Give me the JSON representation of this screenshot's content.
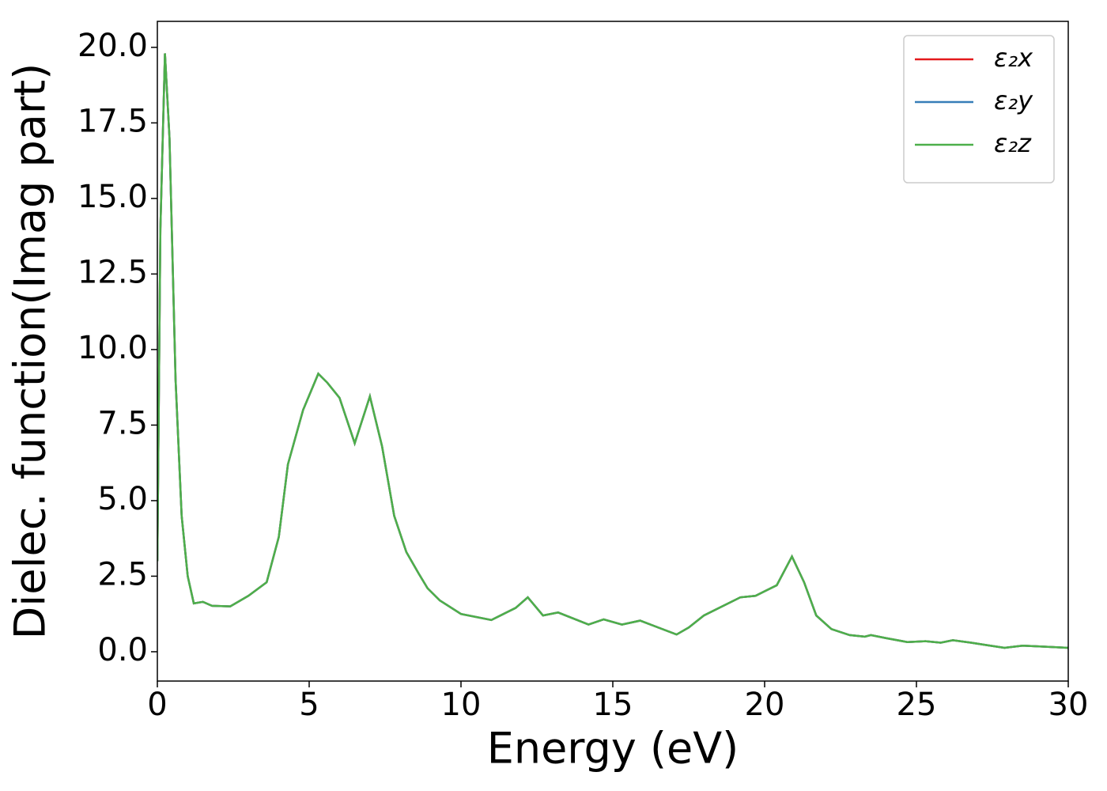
{
  "chart_data": {
    "type": "line",
    "xlabel": "Energy (eV)",
    "ylabel": "Dielec. function(Imag part)",
    "x": [
      0,
      0.1,
      0.25,
      0.4,
      0.6,
      0.8,
      1.0,
      1.2,
      1.5,
      1.8,
      2.4,
      3.0,
      3.6,
      4.0,
      4.3,
      4.8,
      5.3,
      5.6,
      6.0,
      6.5,
      7.0,
      7.4,
      7.8,
      8.2,
      8.6,
      8.9,
      9.3,
      10.0,
      11.0,
      11.5,
      11.8,
      12.2,
      12.7,
      13.2,
      13.7,
      14.2,
      14.7,
      15.3,
      15.9,
      16.5,
      17.1,
      17.5,
      18.0,
      18.6,
      19.2,
      19.7,
      20.0,
      20.4,
      20.9,
      21.3,
      21.7,
      22.2,
      22.8,
      23.3,
      23.5,
      24.0,
      24.7,
      25.3,
      25.8,
      26.2,
      26.8,
      27.3,
      27.9,
      28.5,
      29.2,
      30.0
    ],
    "series": [
      {
        "name": "ε₂x",
        "color": "#e41a1c",
        "values": [
          3.0,
          14,
          19.8,
          17,
          9,
          4.5,
          2.5,
          1.6,
          1.65,
          1.52,
          1.5,
          1.85,
          2.3,
          3.8,
          6.2,
          8.0,
          9.2,
          8.9,
          8.4,
          6.9,
          8.45,
          6.8,
          4.5,
          3.3,
          2.6,
          2.1,
          1.7,
          1.25,
          1.05,
          1.3,
          1.45,
          1.8,
          1.2,
          1.3,
          1.1,
          0.9,
          1.07,
          0.9,
          1.03,
          0.8,
          0.57,
          0.8,
          1.2,
          1.5,
          1.8,
          1.85,
          2.0,
          2.2,
          3.15,
          2.3,
          1.2,
          0.75,
          0.55,
          0.5,
          0.55,
          0.45,
          0.32,
          0.35,
          0.3,
          0.38,
          0.3,
          0.22,
          0.13,
          0.2,
          0.17,
          0.13
        ]
      },
      {
        "name": "ε₂y",
        "color": "#377eb8",
        "values": [
          3.0,
          14,
          19.8,
          17,
          9,
          4.5,
          2.5,
          1.6,
          1.65,
          1.52,
          1.5,
          1.85,
          2.3,
          3.8,
          6.2,
          8.0,
          9.2,
          8.9,
          8.4,
          6.9,
          8.45,
          6.8,
          4.5,
          3.3,
          2.6,
          2.1,
          1.7,
          1.25,
          1.05,
          1.3,
          1.45,
          1.8,
          1.2,
          1.3,
          1.1,
          0.9,
          1.07,
          0.9,
          1.03,
          0.8,
          0.57,
          0.8,
          1.2,
          1.5,
          1.8,
          1.85,
          2.0,
          2.2,
          3.15,
          2.3,
          1.2,
          0.75,
          0.55,
          0.5,
          0.55,
          0.45,
          0.32,
          0.35,
          0.3,
          0.38,
          0.3,
          0.22,
          0.13,
          0.2,
          0.17,
          0.13
        ]
      },
      {
        "name": "ε₂z",
        "color": "#4daf4a",
        "values": [
          3.0,
          14,
          19.8,
          17,
          9,
          4.5,
          2.5,
          1.6,
          1.65,
          1.52,
          1.5,
          1.85,
          2.3,
          3.8,
          6.2,
          8.0,
          9.2,
          8.9,
          8.4,
          6.9,
          8.45,
          6.8,
          4.5,
          3.3,
          2.6,
          2.1,
          1.7,
          1.25,
          1.05,
          1.3,
          1.45,
          1.8,
          1.2,
          1.3,
          1.1,
          0.9,
          1.07,
          0.9,
          1.03,
          0.8,
          0.57,
          0.8,
          1.2,
          1.5,
          1.8,
          1.85,
          2.0,
          2.2,
          3.15,
          2.3,
          1.2,
          0.75,
          0.55,
          0.5,
          0.55,
          0.45,
          0.32,
          0.35,
          0.3,
          0.38,
          0.3,
          0.22,
          0.13,
          0.2,
          0.17,
          0.13
        ]
      }
    ],
    "xlim": [
      0,
      30
    ],
    "xticks": [
      0,
      5,
      10,
      15,
      20,
      25,
      30
    ],
    "ylim": [
      -0.97,
      20.86
    ],
    "yticks": [
      {
        "value": 0,
        "label": "0.0"
      },
      2.5,
      {
        "value": 5,
        "label": "5.0"
      },
      7.5,
      {
        "value": 10,
        "label": "10.0"
      },
      12.5,
      {
        "value": 15,
        "label": "15.0"
      },
      17.5,
      {
        "value": 20,
        "label": "20.0"
      }
    ],
    "legend": "upper right",
    "grid": false
  }
}
